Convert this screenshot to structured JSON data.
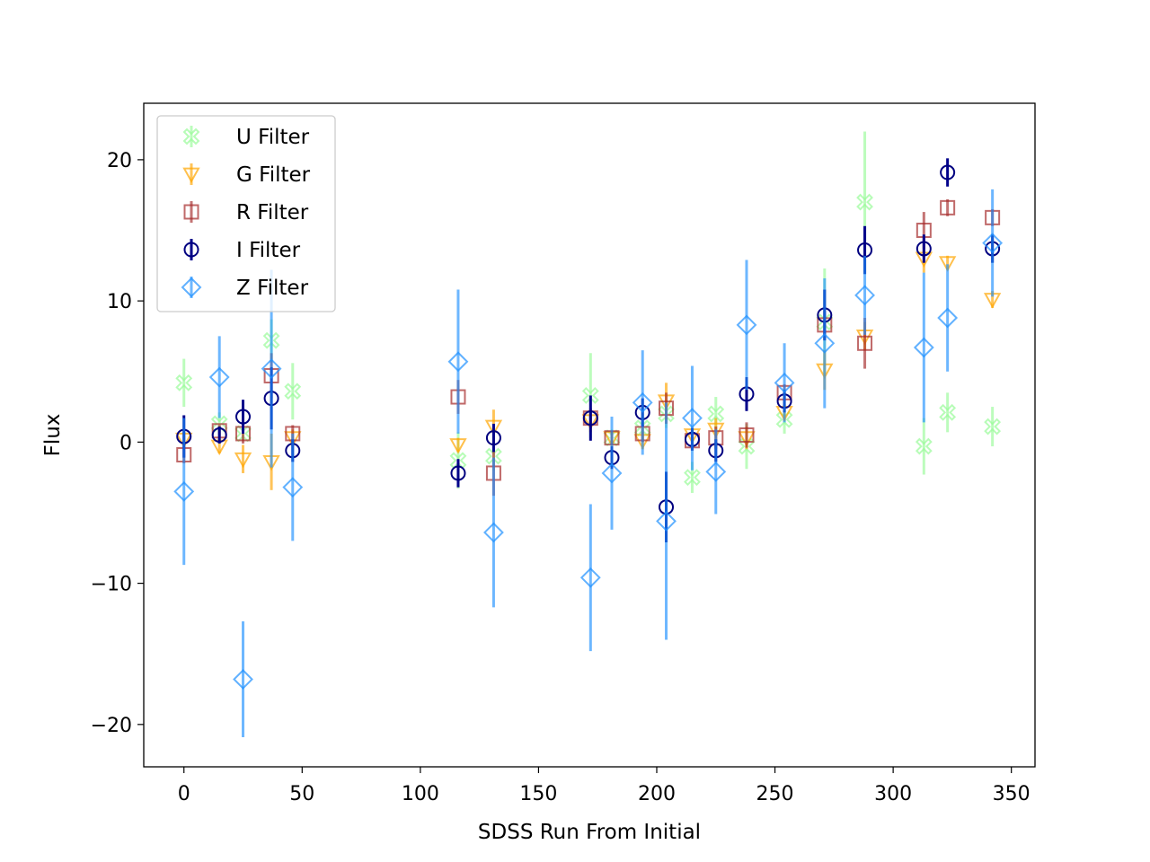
{
  "chart_data": {
    "type": "scatter",
    "xlabel": "SDSS Run From Initial",
    "ylabel": "Flux",
    "xlim": [
      -17,
      360
    ],
    "ylim": [
      -23,
      24
    ],
    "xticks": [
      0,
      50,
      100,
      150,
      200,
      250,
      300,
      350
    ],
    "yticks": [
      -20,
      -10,
      0,
      10,
      20
    ],
    "ytick_labels": [
      "−20",
      "−10",
      "0",
      "10",
      "20"
    ],
    "grid": false,
    "legend_position": "upper left",
    "series": [
      {
        "name": "U Filter",
        "marker": "X",
        "color": "#98fb98",
        "ecolor": "#98fb98",
        "points": [
          {
            "x": 0,
            "y": 4.2,
            "err": 1.7
          },
          {
            "x": 15,
            "y": 1.3,
            "err": 0.8
          },
          {
            "x": 25,
            "y": 0.6,
            "err": 0.5
          },
          {
            "x": 37,
            "y": 7.2,
            "err": 1.5
          },
          {
            "x": 46,
            "y": 3.6,
            "err": 2.0
          },
          {
            "x": 116,
            "y": -1.3,
            "err": 2.0
          },
          {
            "x": 131,
            "y": -1.0,
            "err": 1.0
          },
          {
            "x": 172,
            "y": 3.3,
            "err": 3.0
          },
          {
            "x": 181,
            "y": 0.3,
            "err": 0.6
          },
          {
            "x": 194,
            "y": 1.0,
            "err": 1.0
          },
          {
            "x": 204,
            "y": 2.0,
            "err": 1.0
          },
          {
            "x": 215,
            "y": -2.5,
            "err": 1.1
          },
          {
            "x": 225,
            "y": 2.0,
            "err": 1.2
          },
          {
            "x": 238,
            "y": -0.3,
            "err": 1.6
          },
          {
            "x": 254,
            "y": 1.6,
            "err": 1.0
          },
          {
            "x": 271,
            "y": 8.5,
            "err": 3.8
          },
          {
            "x": 288,
            "y": 17.0,
            "err": 5.0
          },
          {
            "x": 313,
            "y": -0.3,
            "err": 2.0
          },
          {
            "x": 323,
            "y": 2.1,
            "err": 1.4
          },
          {
            "x": 342,
            "y": 1.1,
            "err": 1.4
          }
        ]
      },
      {
        "name": "G Filter",
        "marker": "v",
        "color": "#ffa500",
        "ecolor": "#ffa500",
        "points": [
          {
            "x": 0,
            "y": 0.2,
            "err": 0.5
          },
          {
            "x": 15,
            "y": -0.3,
            "err": 0.5
          },
          {
            "x": 25,
            "y": -1.2,
            "err": 1.0
          },
          {
            "x": 37,
            "y": -1.4,
            "err": 2.0
          },
          {
            "x": 46,
            "y": 0.3,
            "err": 0.6
          },
          {
            "x": 116,
            "y": -0.2,
            "err": 0.5
          },
          {
            "x": 131,
            "y": 1.1,
            "err": 1.2
          },
          {
            "x": 172,
            "y": 1.5,
            "err": 0.8
          },
          {
            "x": 181,
            "y": 0.3,
            "err": 0.5
          },
          {
            "x": 194,
            "y": 0.1,
            "err": 0.6
          },
          {
            "x": 204,
            "y": 2.9,
            "err": 1.3
          },
          {
            "x": 215,
            "y": 0.5,
            "err": 0.5
          },
          {
            "x": 225,
            "y": 0.9,
            "err": 0.8
          },
          {
            "x": 238,
            "y": 0.3,
            "err": 0.8
          },
          {
            "x": 254,
            "y": 2.1,
            "err": 0.6
          },
          {
            "x": 271,
            "y": 5.1,
            "err": 1.4
          },
          {
            "x": 288,
            "y": 7.5,
            "err": 1.0
          },
          {
            "x": 313,
            "y": 13.0,
            "err": 1.0
          },
          {
            "x": 323,
            "y": 12.7,
            "err": 0.5
          },
          {
            "x": 342,
            "y": 10.1,
            "err": 0.6
          }
        ]
      },
      {
        "name": "R Filter",
        "marker": "s",
        "color": "#a52a2a",
        "ecolor": "#a52a2a",
        "points": [
          {
            "x": 0,
            "y": -0.9,
            "err": 0.6
          },
          {
            "x": 15,
            "y": 0.8,
            "err": 0.4
          },
          {
            "x": 25,
            "y": 0.6,
            "err": 0.7
          },
          {
            "x": 37,
            "y": 4.7,
            "err": 1.6
          },
          {
            "x": 46,
            "y": 0.6,
            "err": 0.6
          },
          {
            "x": 116,
            "y": 3.2,
            "err": 1.2
          },
          {
            "x": 131,
            "y": -2.2,
            "err": 1.6
          },
          {
            "x": 172,
            "y": 1.7,
            "err": 0.7
          },
          {
            "x": 181,
            "y": 0.3,
            "err": 0.5
          },
          {
            "x": 194,
            "y": 0.6,
            "err": 0.6
          },
          {
            "x": 204,
            "y": 2.4,
            "err": 1.1
          },
          {
            "x": 215,
            "y": 0.1,
            "err": 0.7
          },
          {
            "x": 225,
            "y": 0.3,
            "err": 0.8
          },
          {
            "x": 238,
            "y": 0.5,
            "err": 0.9
          },
          {
            "x": 254,
            "y": 3.5,
            "err": 0.6
          },
          {
            "x": 271,
            "y": 8.3,
            "err": 1.0
          },
          {
            "x": 288,
            "y": 7.0,
            "err": 1.8
          },
          {
            "x": 313,
            "y": 15.0,
            "err": 1.3
          },
          {
            "x": 323,
            "y": 16.6,
            "err": 0.6
          },
          {
            "x": 342,
            "y": 15.9,
            "err": 0.6
          }
        ]
      },
      {
        "name": "I Filter",
        "marker": "o",
        "color": "#000080",
        "ecolor": "#00008b",
        "points": [
          {
            "x": 0,
            "y": 0.4,
            "err": 1.5
          },
          {
            "x": 15,
            "y": 0.5,
            "err": 0.6
          },
          {
            "x": 25,
            "y": 1.8,
            "err": 1.2
          },
          {
            "x": 37,
            "y": 3.1,
            "err": 2.2
          },
          {
            "x": 46,
            "y": -0.6,
            "err": 0.8
          },
          {
            "x": 116,
            "y": -2.2,
            "err": 1.0
          },
          {
            "x": 131,
            "y": 0.3,
            "err": 1.0
          },
          {
            "x": 172,
            "y": 1.7,
            "err": 1.6
          },
          {
            "x": 181,
            "y": -1.1,
            "err": 0.8
          },
          {
            "x": 194,
            "y": 2.1,
            "err": 1.0
          },
          {
            "x": 204,
            "y": -4.6,
            "err": 2.5
          },
          {
            "x": 215,
            "y": 0.2,
            "err": 0.8
          },
          {
            "x": 225,
            "y": -0.6,
            "err": 0.8
          },
          {
            "x": 238,
            "y": 3.4,
            "err": 1.2
          },
          {
            "x": 254,
            "y": 2.9,
            "err": 0.8
          },
          {
            "x": 271,
            "y": 9.0,
            "err": 1.8
          },
          {
            "x": 288,
            "y": 13.6,
            "err": 1.7
          },
          {
            "x": 313,
            "y": 13.7,
            "err": 1.0
          },
          {
            "x": 323,
            "y": 19.1,
            "err": 1.0
          },
          {
            "x": 342,
            "y": 13.7,
            "err": 1.0
          }
        ]
      },
      {
        "name": "Z Filter",
        "marker": "D",
        "color": "#1e90ff",
        "ecolor": "#1e90ff",
        "points": [
          {
            "x": 0,
            "y": -3.5,
            "err": 5.2
          },
          {
            "x": 15,
            "y": 4.6,
            "err": 2.9
          },
          {
            "x": 25,
            "y": -16.8,
            "err": 4.1
          },
          {
            "x": 37,
            "y": 5.2,
            "err": 7.0
          },
          {
            "x": 46,
            "y": -3.2,
            "err": 3.8
          },
          {
            "x": 116,
            "y": 5.7,
            "err": 5.1
          },
          {
            "x": 131,
            "y": -6.4,
            "err": 5.3
          },
          {
            "x": 172,
            "y": -9.6,
            "err": 5.2
          },
          {
            "x": 181,
            "y": -2.2,
            "err": 4.0
          },
          {
            "x": 194,
            "y": 2.8,
            "err": 3.7
          },
          {
            "x": 204,
            "y": -5.6,
            "err": 8.4
          },
          {
            "x": 215,
            "y": 1.7,
            "err": 3.7
          },
          {
            "x": 225,
            "y": -2.1,
            "err": 3.0
          },
          {
            "x": 238,
            "y": 8.3,
            "err": 4.6
          },
          {
            "x": 254,
            "y": 4.2,
            "err": 2.8
          },
          {
            "x": 271,
            "y": 7.0,
            "err": 4.6
          },
          {
            "x": 288,
            "y": 10.4,
            "err": 2.8
          },
          {
            "x": 313,
            "y": 6.7,
            "err": 5.3
          },
          {
            "x": 323,
            "y": 8.8,
            "err": 3.8
          },
          {
            "x": 342,
            "y": 14.1,
            "err": 3.8
          }
        ]
      }
    ]
  }
}
